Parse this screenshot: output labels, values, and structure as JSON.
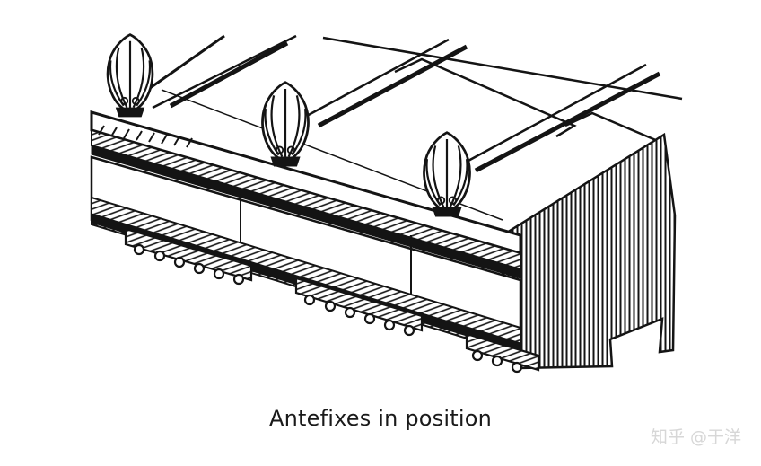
{
  "caption": "Antefixes in position",
  "watermark": "知乎 @于洋",
  "colors": {
    "ink": "#141414",
    "paper": "#ffffff",
    "watermark": "#d7d7d7"
  }
}
